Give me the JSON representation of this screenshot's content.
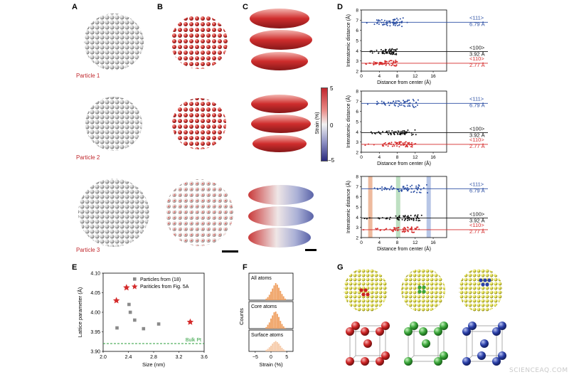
{
  "panels": {
    "A": "A",
    "B": "B",
    "C": "C",
    "D": "D",
    "E": "E",
    "F": "F",
    "G": "G"
  },
  "particles": [
    "Particle 1",
    "Particle 2",
    "Particle 3"
  ],
  "colorbar": {
    "max": "5",
    "mid": "0",
    "min": "−5",
    "label": "Strain (%)",
    "colors": [
      "#c0262d",
      "#e98a86",
      "#f2f2f2",
      "#8c8fc2",
      "#2a2a7c"
    ]
  },
  "d_axis": {
    "ylabel": "Interatomic distance (Å)",
    "xlabel": "Distance from center (Å)",
    "xticks": [
      "0",
      "4",
      "8",
      "12",
      "16"
    ],
    "yticks": [
      "2",
      "3",
      "4",
      "5",
      "6",
      "7",
      "8"
    ],
    "xlim": [
      0,
      19
    ],
    "ylim": [
      2,
      8
    ]
  },
  "d_lines": [
    {
      "dir": "<111>",
      "val": "6.79 Å",
      "y": 6.79,
      "color": "#2c4fa3"
    },
    {
      "dir": "<100>",
      "val": "3.92 Å",
      "y": 3.92,
      "color": "#111111"
    },
    {
      "dir": "<110>",
      "val": "2.77 Å",
      "y": 2.77,
      "color": "#d42a2a"
    }
  ],
  "d_spread": [
    7.5,
    11.5,
    12.5
  ],
  "d_bands": [
    {
      "x": 2,
      "color": "#e8a37e"
    },
    {
      "x": 8.2,
      "color": "#a8d5ae"
    },
    {
      "x": 15,
      "color": "#9fb3de"
    }
  ],
  "e_chart": {
    "ylabel": "Lattice parameter (Å)",
    "xlabel": "Size (nm)",
    "xticks": [
      "2.0",
      "2.4",
      "2.8",
      "3.2",
      "3.6"
    ],
    "yticks": [
      "3.90",
      "3.95",
      "4.00",
      "4.05",
      "4.10"
    ],
    "xlim": [
      2.0,
      3.6
    ],
    "ylim": [
      3.9,
      4.1
    ],
    "legend": [
      "Particles from (18)",
      "Pariticles from Fig. 5A"
    ],
    "bulk_label": "Bulk Pt",
    "bulk_value": 3.92,
    "squares": [
      [
        2.22,
        3.96
      ],
      [
        2.41,
        4.02
      ],
      [
        2.43,
        4.0
      ],
      [
        2.5,
        3.98
      ],
      [
        2.64,
        3.958
      ],
      [
        2.88,
        3.97
      ]
    ],
    "stars": [
      [
        2.21,
        4.03
      ],
      [
        2.37,
        4.063
      ],
      [
        3.38,
        3.975
      ]
    ]
  },
  "f_chart": {
    "ylabel": "Counts",
    "xlabel": "Strain (%)",
    "xticks": [
      "−5",
      "0",
      "5"
    ],
    "sub": [
      "All atoms",
      "Core atoms",
      "Surface atoms"
    ],
    "colors": [
      "#ef9e5e",
      "#ef9e5e",
      "#f6c9a6"
    ],
    "bins": [
      -1.5,
      -1,
      -0.5,
      0,
      0.5,
      1,
      1.5,
      2,
      2.5,
      3,
      3.5,
      4,
      4.5
    ],
    "counts": [
      [
        2,
        4,
        7,
        11,
        15,
        19,
        22,
        20,
        16,
        12,
        8,
        5,
        2
      ],
      [
        2,
        5,
        8,
        13,
        17,
        21,
        22,
        19,
        15,
        10,
        6,
        3,
        1
      ],
      [
        3,
        5,
        8,
        11,
        15,
        18,
        20,
        18,
        15,
        11,
        7,
        4,
        2
      ]
    ]
  },
  "watermark": "SCIENCEAQ.COM"
}
